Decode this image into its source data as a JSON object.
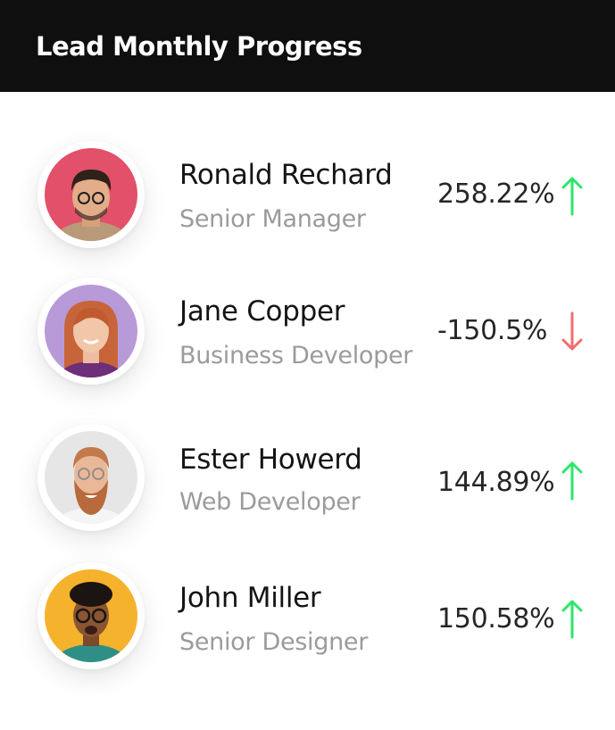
{
  "header": {
    "title": "Lead Monthly Progress"
  },
  "colors": {
    "up": "#2ee56a",
    "down": "#f26d6d"
  },
  "people": [
    {
      "name": "Ronald Rechard",
      "role": "Senior Manager",
      "progress": "258.22%",
      "trend": "up",
      "icon": "arrow-up-icon"
    },
    {
      "name": "Jane Copper",
      "role": "Business Developer",
      "progress": "-150.5%",
      "trend": "down",
      "icon": "arrow-down-icon"
    },
    {
      "name": "Ester Howerd",
      "role": "Web Developer",
      "progress": "144.89%",
      "trend": "up",
      "icon": "arrow-up-icon"
    },
    {
      "name": "John Miller",
      "role": "Senior Designer",
      "progress": "150.58%",
      "trend": "up",
      "icon": "arrow-up-icon"
    }
  ]
}
